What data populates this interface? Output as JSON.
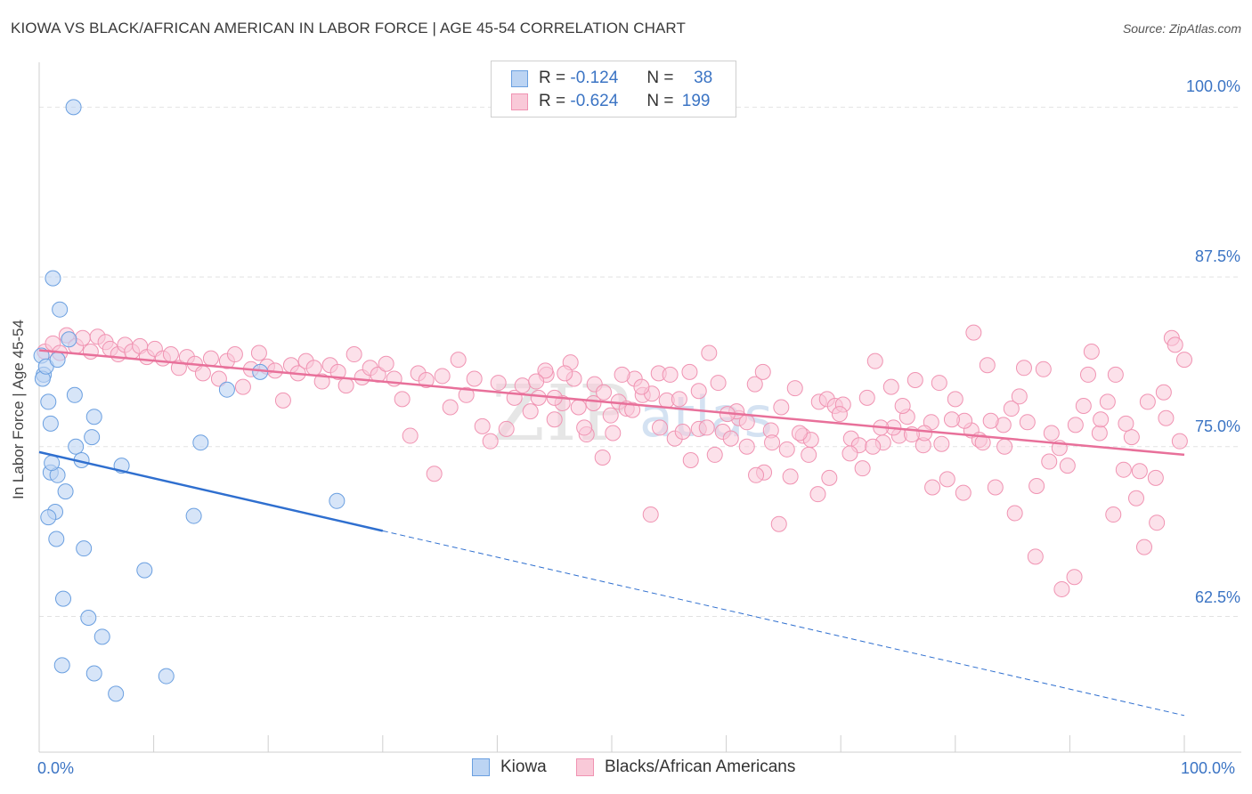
{
  "title": "KIOWA VS BLACK/AFRICAN AMERICAN IN LABOR FORCE | AGE 45-54 CORRELATION CHART",
  "source": "Source: ZipAtlas.com",
  "watermark": {
    "zip": "ZIP",
    "atlas": "atlas"
  },
  "legend": {
    "rows": [
      {
        "r_label": "R =",
        "r_value": "-0.124",
        "n_label": "N =",
        "n_value": "38"
      },
      {
        "r_label": "R =",
        "r_value": "-0.624",
        "n_label": "N =",
        "n_value": "199"
      }
    ]
  },
  "bottom_legend": [
    "Kiowa",
    "Blacks/African Americans"
  ],
  "chart_data": {
    "type": "scatter",
    "xlabel": "",
    "ylabel": "In Labor Force | Age 45-54",
    "xlim": [
      0,
      100
    ],
    "ylim": [
      52.5,
      103.5
    ],
    "x_tick_labels": [
      "0.0%",
      "100.0%"
    ],
    "y_ticks": [
      62.5,
      75.0,
      87.5,
      100.0
    ],
    "y_tick_labels": [
      "62.5%",
      "75.0%",
      "87.5%",
      "100.0%"
    ],
    "grid": "horizontal dashed",
    "colors": {
      "kiowa": "#6a9fe0",
      "kiowa_fill": "#bcd4f3",
      "black": "#f093b2",
      "black_fill": "#f9c9d8",
      "kiowa_line": "#2f6fcf",
      "black_line": "#e8709a"
    },
    "series": [
      {
        "name": "Kiowa",
        "trend": {
          "x0": 0,
          "y0": 74.6,
          "x1": 30,
          "y1": 68.8,
          "dashed_to_x": 100,
          "dashed_to_y": 55.2
        },
        "points": [
          [
            3,
            100.0
          ],
          [
            0.2,
            81.7
          ],
          [
            0.4,
            80.3
          ],
          [
            0.3,
            80.0
          ],
          [
            0.6,
            80.9
          ],
          [
            1.2,
            87.4
          ],
          [
            1.8,
            85.1
          ],
          [
            1.6,
            81.4
          ],
          [
            2.6,
            82.9
          ],
          [
            3.1,
            78.8
          ],
          [
            0.8,
            78.3
          ],
          [
            1.0,
            76.7
          ],
          [
            4.8,
            77.2
          ],
          [
            4.6,
            75.7
          ],
          [
            3.2,
            75.0
          ],
          [
            3.7,
            74.0
          ],
          [
            1.0,
            73.1
          ],
          [
            1.6,
            72.9
          ],
          [
            1.1,
            73.8
          ],
          [
            2.3,
            71.7
          ],
          [
            1.4,
            70.2
          ],
          [
            0.8,
            69.8
          ],
          [
            1.5,
            68.2
          ],
          [
            3.9,
            67.5
          ],
          [
            7.2,
            73.6
          ],
          [
            9.2,
            65.9
          ],
          [
            2.1,
            63.8
          ],
          [
            4.3,
            62.4
          ],
          [
            5.5,
            61.0
          ],
          [
            2.0,
            58.9
          ],
          [
            4.8,
            58.3
          ],
          [
            6.7,
            56.8
          ],
          [
            11.1,
            58.1
          ],
          [
            13.5,
            69.9
          ],
          [
            14.1,
            75.3
          ],
          [
            16.4,
            79.2
          ],
          [
            19.3,
            80.5
          ],
          [
            26.0,
            71.0
          ]
        ]
      },
      {
        "name": "Blacks/African Americans",
        "trend": {
          "x0": 0,
          "y0": 82.1,
          "x1": 100,
          "y1": 74.4
        },
        "points": [
          [
            0.5,
            82.0
          ],
          [
            1.2,
            82.6
          ],
          [
            1.8,
            81.9
          ],
          [
            2.4,
            83.2
          ],
          [
            3.2,
            82.4
          ],
          [
            3.8,
            83.0
          ],
          [
            4.5,
            82.0
          ],
          [
            5.1,
            83.1
          ],
          [
            5.8,
            82.7
          ],
          [
            6.2,
            82.2
          ],
          [
            6.9,
            81.8
          ],
          [
            7.5,
            82.5
          ],
          [
            8.1,
            82.0
          ],
          [
            8.8,
            82.4
          ],
          [
            9.4,
            81.6
          ],
          [
            10.1,
            82.2
          ],
          [
            10.8,
            81.5
          ],
          [
            11.5,
            81.8
          ],
          [
            12.2,
            80.8
          ],
          [
            12.9,
            81.6
          ],
          [
            13.6,
            81.1
          ],
          [
            14.3,
            80.4
          ],
          [
            15.0,
            81.5
          ],
          [
            15.7,
            80.0
          ],
          [
            16.4,
            81.3
          ],
          [
            17.1,
            81.8
          ],
          [
            17.8,
            79.4
          ],
          [
            18.5,
            80.7
          ],
          [
            19.2,
            81.9
          ],
          [
            19.9,
            80.9
          ],
          [
            20.6,
            80.6
          ],
          [
            21.3,
            78.4
          ],
          [
            22.0,
            81.0
          ],
          [
            22.6,
            80.4
          ],
          [
            23.3,
            81.3
          ],
          [
            24.0,
            80.8
          ],
          [
            24.7,
            79.8
          ],
          [
            25.4,
            81.0
          ],
          [
            26.1,
            80.5
          ],
          [
            26.8,
            79.5
          ],
          [
            27.5,
            81.8
          ],
          [
            28.2,
            80.1
          ],
          [
            28.9,
            80.8
          ],
          [
            29.6,
            80.3
          ],
          [
            30.3,
            81.1
          ],
          [
            31.0,
            80.0
          ],
          [
            31.7,
            78.5
          ],
          [
            32.4,
            75.8
          ],
          [
            33.1,
            80.4
          ],
          [
            33.8,
            79.9
          ],
          [
            34.5,
            73.0
          ],
          [
            35.2,
            80.2
          ],
          [
            35.9,
            77.9
          ],
          [
            36.6,
            81.4
          ],
          [
            37.3,
            78.8
          ],
          [
            38.0,
            80.0
          ],
          [
            38.7,
            76.5
          ],
          [
            39.4,
            75.4
          ],
          [
            40.1,
            79.7
          ],
          [
            40.8,
            76.3
          ],
          [
            41.5,
            78.6
          ],
          [
            42.2,
            79.5
          ],
          [
            42.9,
            77.6
          ],
          [
            43.6,
            78.6
          ],
          [
            44.3,
            80.3
          ],
          [
            45.0,
            77.0
          ],
          [
            45.7,
            78.2
          ],
          [
            46.4,
            81.2
          ],
          [
            47.1,
            77.9
          ],
          [
            47.8,
            75.9
          ],
          [
            48.5,
            79.6
          ],
          [
            49.2,
            74.2
          ],
          [
            49.9,
            77.3
          ],
          [
            50.6,
            78.3
          ],
          [
            51.3,
            77.8
          ],
          [
            52.0,
            80.0
          ],
          [
            52.7,
            78.8
          ],
          [
            53.4,
            70.0
          ],
          [
            54.1,
            80.4
          ],
          [
            54.8,
            78.4
          ],
          [
            55.5,
            75.6
          ],
          [
            56.2,
            76.1
          ],
          [
            56.9,
            74.0
          ],
          [
            57.6,
            76.3
          ],
          [
            58.3,
            76.4
          ],
          [
            59.0,
            74.4
          ],
          [
            59.7,
            76.1
          ],
          [
            60.4,
            75.6
          ],
          [
            61.1,
            77.1
          ],
          [
            61.8,
            76.8
          ],
          [
            62.5,
            79.6
          ],
          [
            63.2,
            80.5
          ],
          [
            63.9,
            76.2
          ],
          [
            64.6,
            69.3
          ],
          [
            65.3,
            74.8
          ],
          [
            66.0,
            79.3
          ],
          [
            66.7,
            75.8
          ],
          [
            67.4,
            75.5
          ],
          [
            68.1,
            78.3
          ],
          [
            68.8,
            78.5
          ],
          [
            69.5,
            78.0
          ],
          [
            70.2,
            78.1
          ],
          [
            70.9,
            75.6
          ],
          [
            71.6,
            75.1
          ],
          [
            72.3,
            78.6
          ],
          [
            73.0,
            81.3
          ],
          [
            73.7,
            75.3
          ],
          [
            74.4,
            79.4
          ],
          [
            75.1,
            75.8
          ],
          [
            75.8,
            77.2
          ],
          [
            76.5,
            79.9
          ],
          [
            77.2,
            75.1
          ],
          [
            77.9,
            76.8
          ],
          [
            78.6,
            79.7
          ],
          [
            79.3,
            72.6
          ],
          [
            80.0,
            78.5
          ],
          [
            80.7,
            71.6
          ],
          [
            81.4,
            76.2
          ],
          [
            82.1,
            75.5
          ],
          [
            82.8,
            81.0
          ],
          [
            83.5,
            72.0
          ],
          [
            84.2,
            76.6
          ],
          [
            84.9,
            77.8
          ],
          [
            85.6,
            78.7
          ],
          [
            86.3,
            76.8
          ],
          [
            87.0,
            66.9
          ],
          [
            87.7,
            80.7
          ],
          [
            88.4,
            76.0
          ],
          [
            89.1,
            74.9
          ],
          [
            89.8,
            73.6
          ],
          [
            90.5,
            76.6
          ],
          [
            91.2,
            78.0
          ],
          [
            91.9,
            82.0
          ],
          [
            92.6,
            76.0
          ],
          [
            93.3,
            78.3
          ],
          [
            94.0,
            80.3
          ],
          [
            94.7,
            73.3
          ],
          [
            95.4,
            75.7
          ],
          [
            96.1,
            73.2
          ],
          [
            96.8,
            78.3
          ],
          [
            97.5,
            72.7
          ],
          [
            98.2,
            79.0
          ],
          [
            98.9,
            83.0
          ],
          [
            99.6,
            75.4
          ],
          [
            100.0,
            81.4
          ],
          [
            99.2,
            82.5
          ],
          [
            98.4,
            77.1
          ],
          [
            97.6,
            69.4
          ],
          [
            96.5,
            67.6
          ],
          [
            95.8,
            71.2
          ],
          [
            94.9,
            76.7
          ],
          [
            93.8,
            70.0
          ],
          [
            92.7,
            77.0
          ],
          [
            91.6,
            80.3
          ],
          [
            90.4,
            65.4
          ],
          [
            89.3,
            64.5
          ],
          [
            88.2,
            73.9
          ],
          [
            87.1,
            72.1
          ],
          [
            86.0,
            80.8
          ],
          [
            85.2,
            70.1
          ],
          [
            84.3,
            75.0
          ],
          [
            83.1,
            76.9
          ],
          [
            82.4,
            75.3
          ],
          [
            81.6,
            83.4
          ],
          [
            80.8,
            76.9
          ],
          [
            79.7,
            77.0
          ],
          [
            78.8,
            75.2
          ],
          [
            78.0,
            72.0
          ],
          [
            77.3,
            76.0
          ],
          [
            76.2,
            75.9
          ],
          [
            75.4,
            78.0
          ],
          [
            74.6,
            76.4
          ],
          [
            73.5,
            76.4
          ],
          [
            72.8,
            75.0
          ],
          [
            71.9,
            73.4
          ],
          [
            70.8,
            74.5
          ],
          [
            69.9,
            77.4
          ],
          [
            69.0,
            72.7
          ],
          [
            68.0,
            71.5
          ],
          [
            67.2,
            74.4
          ],
          [
            66.4,
            76.0
          ],
          [
            65.6,
            72.8
          ],
          [
            64.8,
            77.9
          ],
          [
            64.0,
            75.3
          ],
          [
            63.3,
            73.1
          ],
          [
            62.6,
            72.9
          ],
          [
            61.8,
            75.0
          ],
          [
            60.9,
            77.6
          ],
          [
            60.1,
            77.4
          ],
          [
            59.3,
            79.7
          ],
          [
            58.5,
            81.9
          ],
          [
            57.6,
            79.1
          ],
          [
            56.8,
            80.5
          ],
          [
            55.9,
            78.5
          ],
          [
            55.1,
            80.3
          ],
          [
            54.2,
            76.4
          ],
          [
            53.5,
            78.9
          ],
          [
            52.6,
            79.4
          ],
          [
            51.8,
            77.7
          ],
          [
            50.9,
            80.3
          ],
          [
            50.1,
            76.0
          ],
          [
            49.3,
            79.0
          ],
          [
            48.4,
            78.2
          ],
          [
            47.6,
            76.4
          ],
          [
            46.7,
            80.0
          ],
          [
            45.9,
            80.4
          ],
          [
            45.0,
            78.6
          ],
          [
            44.2,
            80.6
          ],
          [
            43.4,
            79.8
          ]
        ]
      }
    ]
  }
}
